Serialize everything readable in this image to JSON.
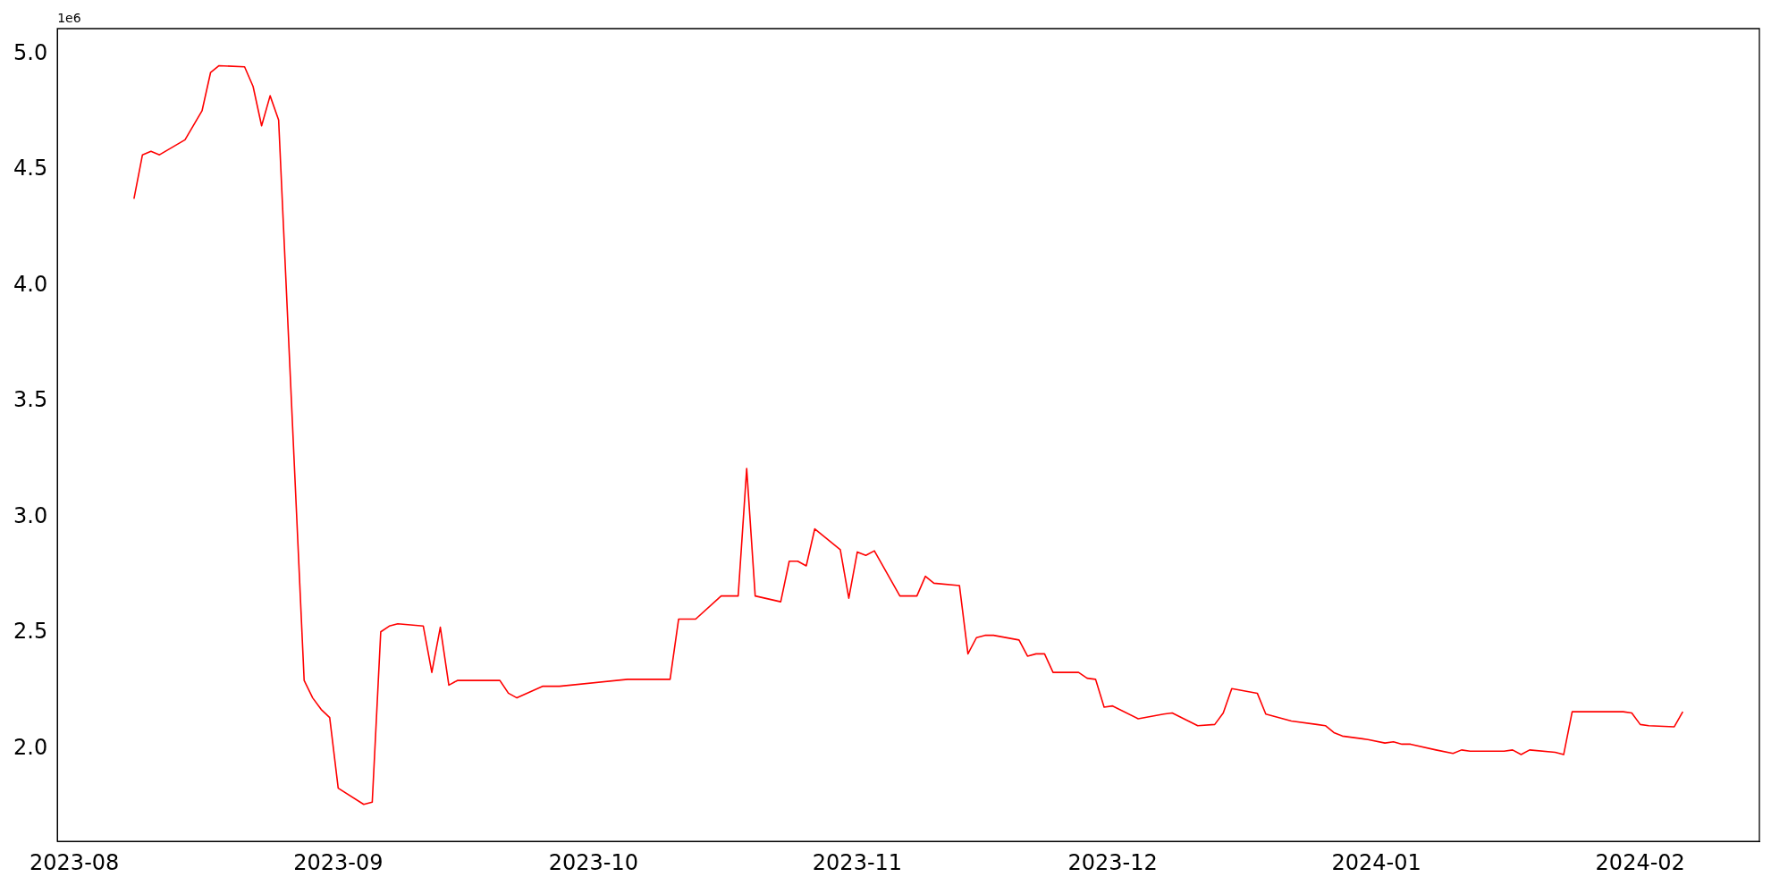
{
  "chart_data": {
    "type": "line",
    "annotations": [
      "1e6"
    ],
    "x": [
      "2023-08-08",
      "2023-08-09",
      "2023-08-10",
      "2023-08-11",
      "2023-08-14",
      "2023-08-16",
      "2023-08-17",
      "2023-08-18",
      "2023-08-21",
      "2023-08-22",
      "2023-08-23",
      "2023-08-24",
      "2023-08-25",
      "2023-08-28",
      "2023-08-29",
      "2023-08-30",
      "2023-08-31",
      "2023-09-01",
      "2023-09-04",
      "2023-09-05",
      "2023-09-06",
      "2023-09-07",
      "2023-09-08",
      "2023-09-11",
      "2023-09-12",
      "2023-09-13",
      "2023-09-14",
      "2023-09-15",
      "2023-09-18",
      "2023-09-20",
      "2023-09-21",
      "2023-09-22",
      "2023-09-25",
      "2023-09-27",
      "2023-10-05",
      "2023-10-10",
      "2023-10-11",
      "2023-10-13",
      "2023-10-16",
      "2023-10-18",
      "2023-10-19",
      "2023-10-20",
      "2023-10-23",
      "2023-10-24",
      "2023-10-25",
      "2023-10-26",
      "2023-10-27",
      "2023-10-30",
      "2023-10-31",
      "2023-11-01",
      "2023-11-02",
      "2023-11-03",
      "2023-11-06",
      "2023-11-08",
      "2023-11-09",
      "2023-11-10",
      "2023-11-13",
      "2023-11-14",
      "2023-11-15",
      "2023-11-16",
      "2023-11-17",
      "2023-11-20",
      "2023-11-21",
      "2023-11-22",
      "2023-11-23",
      "2023-11-24",
      "2023-11-27",
      "2023-11-28",
      "2023-11-29",
      "2023-11-30",
      "2023-12-01",
      "2023-12-04",
      "2023-12-07",
      "2023-12-08",
      "2023-12-11",
      "2023-12-13",
      "2023-12-14",
      "2023-12-15",
      "2023-12-18",
      "2023-12-19",
      "2023-12-22",
      "2023-12-25",
      "2023-12-26",
      "2023-12-27",
      "2023-12-28",
      "2023-12-31",
      "2024-01-02",
      "2024-01-03",
      "2024-01-04",
      "2024-01-05",
      "2024-01-08",
      "2024-01-10",
      "2024-01-11",
      "2024-01-12",
      "2024-01-16",
      "2024-01-17",
      "2024-01-18",
      "2024-01-19",
      "2024-01-22",
      "2024-01-23",
      "2024-01-24",
      "2024-01-26",
      "2024-01-29",
      "2024-01-30",
      "2024-01-31",
      "2024-02-01",
      "2024-02-02",
      "2024-02-05",
      "2024-02-06"
    ],
    "series": [
      {
        "color": "#ff0000",
        "values": [
          4.375,
          4.565,
          4.58,
          4.565,
          4.63,
          4.755,
          4.92,
          4.95,
          4.945,
          4.86,
          4.69,
          4.82,
          4.715,
          2.295,
          2.22,
          2.17,
          2.135,
          1.83,
          1.76,
          1.77,
          2.505,
          2.53,
          2.54,
          2.53,
          2.33,
          2.525,
          2.275,
          2.295,
          2.295,
          2.295,
          2.24,
          2.22,
          2.27,
          2.27,
          2.3,
          2.3,
          2.56,
          2.56,
          2.66,
          2.66,
          3.21,
          2.66,
          2.635,
          2.81,
          2.81,
          2.79,
          2.95,
          2.86,
          2.65,
          2.85,
          2.835,
          2.855,
          2.66,
          2.66,
          2.745,
          2.715,
          2.705,
          2.41,
          2.48,
          2.49,
          2.49,
          2.47,
          2.4,
          2.41,
          2.41,
          2.33,
          2.33,
          2.305,
          2.3,
          2.18,
          2.185,
          2.13,
          2.15,
          2.155,
          2.1,
          2.105,
          2.155,
          2.26,
          2.24,
          2.15,
          2.12,
          2.105,
          2.1,
          2.07,
          2.055,
          2.04,
          2.025,
          2.03,
          2.02,
          2.02,
          1.995,
          1.98,
          1.995,
          1.99,
          1.99,
          1.995,
          1.975,
          1.995,
          1.985,
          1.975,
          2.16,
          2.16,
          2.16,
          2.16,
          2.155,
          2.105,
          2.1,
          2.095,
          2.16
        ]
      }
    ],
    "xlim": [
      "2023-07-30",
      "2024-02-15"
    ],
    "xticks": [
      "2023-08",
      "2023-09",
      "2023-10",
      "2023-11",
      "2023-12",
      "2024-01",
      "2024-02"
    ],
    "ylim": [
      1.6,
      5.11
    ],
    "yticks": [
      {
        "value": 2,
        "label": "2.0"
      },
      {
        "value": 2.5,
        "label": "2.5"
      },
      {
        "value": 3,
        "label": "3.0"
      },
      {
        "value": 3.5,
        "label": "3.5"
      },
      {
        "value": 4,
        "label": "4.0"
      },
      {
        "value": 4.5,
        "label": "4.5"
      },
      {
        "value": 5,
        "label": "5.0"
      }
    ],
    "grid": false,
    "legend": false,
    "marker": "none",
    "line_style": "solid"
  }
}
